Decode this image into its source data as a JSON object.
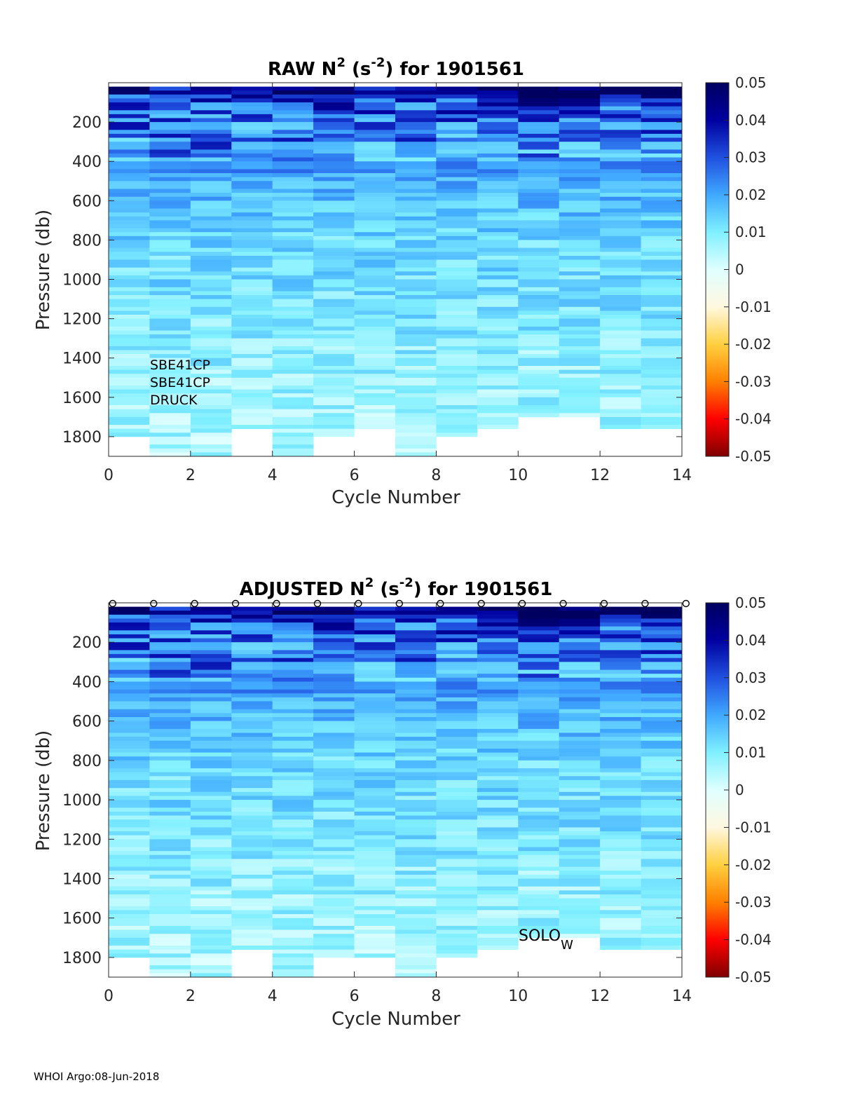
{
  "footer": "WHOI Argo:08-Jun-2018",
  "colorbar": {
    "ticks": [
      "0.05",
      "0.04",
      "0.03",
      "0.02",
      "0.01",
      "0",
      "-0.01",
      "-0.02",
      "-0.03",
      "-0.04",
      "-0.05"
    ],
    "range": [
      -0.05,
      0.05
    ],
    "stops": [
      "#7f0000",
      "#ff0000",
      "#ff8000",
      "#ffd040",
      "#fff8e0",
      "#e0ffff",
      "#80f0ff",
      "#40a8ff",
      "#2050e0",
      "#0000a0",
      "#000060"
    ]
  },
  "chart_data": [
    {
      "type": "heatmap",
      "id": "raw",
      "title_main": "RAW N",
      "title_sup1": "2",
      "title_mid": " (s",
      "title_sup2": "-2",
      "title_end": ") for 1901561",
      "xlabel": "Cycle Number",
      "ylabel": "Pressure (db)",
      "xlim": [
        0,
        14
      ],
      "ylim": [
        1900,
        0
      ],
      "xticks": [
        "0",
        "2",
        "4",
        "6",
        "8",
        "10",
        "12",
        "14"
      ],
      "yticks": [
        "200",
        "400",
        "600",
        "800",
        "1000",
        "1200",
        "1400",
        "1600",
        "1800"
      ],
      "sensor_labels": [
        "SBE41CP",
        "SBE41CP",
        "DRUCK"
      ],
      "max_pressure": [
        1800,
        1900,
        1900,
        1750,
        1900,
        1800,
        1750,
        1900,
        1800,
        1750,
        1700,
        1700,
        1750,
        1750
      ],
      "markers": false
    },
    {
      "type": "heatmap",
      "id": "adj",
      "title_main": "ADJUSTED N",
      "title_sup1": "2",
      "title_mid": " (s",
      "title_sup2": "-2",
      "title_end": ") for 1901561",
      "xlabel": "Cycle Number",
      "ylabel": "Pressure (db)",
      "xlim": [
        0,
        14
      ],
      "ylim": [
        1900,
        0
      ],
      "xticks": [
        "0",
        "2",
        "4",
        "6",
        "8",
        "10",
        "12",
        "14"
      ],
      "yticks": [
        "200",
        "400",
        "600",
        "800",
        "1000",
        "1200",
        "1400",
        "1600",
        "1800"
      ],
      "annotation_main": "SOLO",
      "annotation_sub": "W",
      "max_pressure": [
        1800,
        1900,
        1900,
        1750,
        1900,
        1800,
        1800,
        1900,
        1800,
        1750,
        1700,
        1700,
        1750,
        1750
      ],
      "markers": true
    }
  ]
}
